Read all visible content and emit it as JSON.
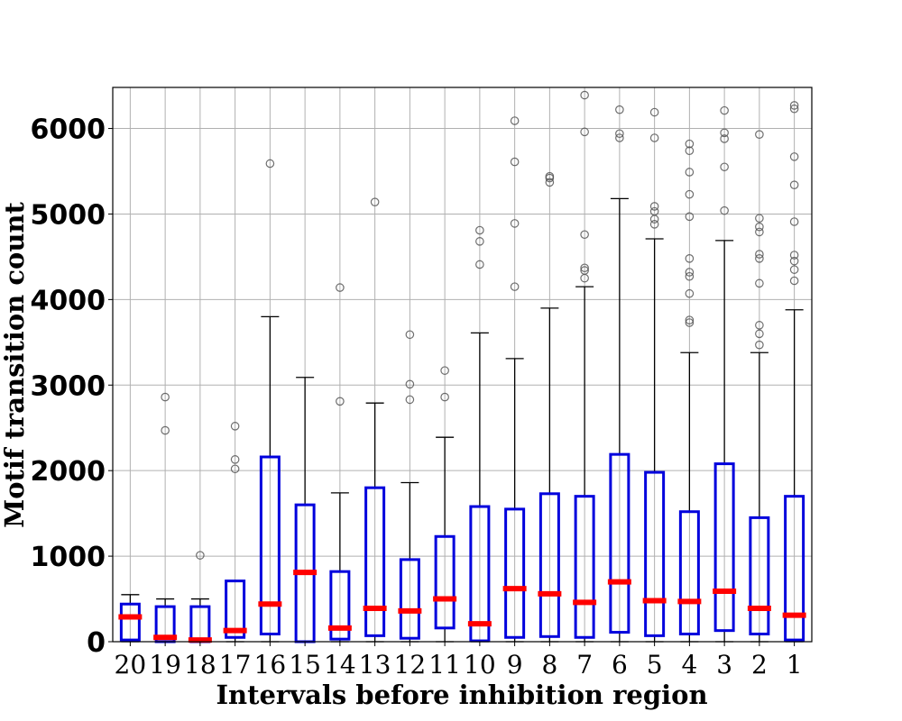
{
  "chart_data": {
    "type": "box",
    "title": "",
    "xlabel": "Intervals before inhibition region",
    "ylabel": "Motif transition count",
    "ylim": [
      0,
      6480
    ],
    "yticks": [
      0,
      1000,
      2000,
      3000,
      4000,
      5000,
      6000
    ],
    "grid": true,
    "colors": {
      "box": "#0000dd",
      "median": "#ff0000",
      "whisker": "#000000",
      "flier": "#555555",
      "grid": "#b0b0b0"
    },
    "categories": [
      "20",
      "19",
      "18",
      "17",
      "16",
      "15",
      "14",
      "13",
      "12",
      "11",
      "10",
      "9",
      "8",
      "7",
      "6",
      "5",
      "4",
      "3",
      "2",
      "1"
    ],
    "boxes": [
      {
        "q1": 20,
        "median": 290,
        "q3": 440,
        "whisker_low": 0,
        "whisker_high": 550,
        "fliers": []
      },
      {
        "q1": 0,
        "median": 50,
        "q3": 410,
        "whisker_low": 0,
        "whisker_high": 500,
        "fliers": [
          2470,
          2860
        ]
      },
      {
        "q1": 0,
        "median": 20,
        "q3": 410,
        "whisker_low": 0,
        "whisker_high": 500,
        "fliers": [
          1010
        ]
      },
      {
        "q1": 50,
        "median": 130,
        "q3": 710,
        "whisker_low": 0,
        "whisker_high": 710,
        "fliers": [
          2020,
          2130,
          2520
        ]
      },
      {
        "q1": 90,
        "median": 440,
        "q3": 2160,
        "whisker_low": 0,
        "whisker_high": 3800,
        "fliers": [
          5590
        ]
      },
      {
        "q1": 0,
        "median": 810,
        "q3": 1600,
        "whisker_low": 0,
        "whisker_high": 3090,
        "fliers": []
      },
      {
        "q1": 30,
        "median": 160,
        "q3": 820,
        "whisker_low": 0,
        "whisker_high": 1740,
        "fliers": [
          2810,
          4140
        ]
      },
      {
        "q1": 70,
        "median": 390,
        "q3": 1800,
        "whisker_low": 0,
        "whisker_high": 2790,
        "fliers": [
          5140
        ]
      },
      {
        "q1": 40,
        "median": 360,
        "q3": 960,
        "whisker_low": 0,
        "whisker_high": 1860,
        "fliers": [
          2830,
          3010,
          3590
        ]
      },
      {
        "q1": 160,
        "median": 500,
        "q3": 1230,
        "whisker_low": 0,
        "whisker_high": 2390,
        "fliers": [
          2860,
          3170
        ]
      },
      {
        "q1": 10,
        "median": 210,
        "q3": 1580,
        "whisker_low": 0,
        "whisker_high": 3610,
        "fliers": [
          4410,
          4680,
          4810
        ]
      },
      {
        "q1": 50,
        "median": 620,
        "q3": 1550,
        "whisker_low": 0,
        "whisker_high": 3310,
        "fliers": [
          4150,
          4890,
          5610,
          6090
        ]
      },
      {
        "q1": 60,
        "median": 560,
        "q3": 1730,
        "whisker_low": 0,
        "whisker_high": 3900,
        "fliers": [
          5370,
          5420,
          5440
        ]
      },
      {
        "q1": 50,
        "median": 460,
        "q3": 1700,
        "whisker_low": 0,
        "whisker_high": 4150,
        "fliers": [
          4250,
          4340,
          4370,
          4760,
          5960,
          6390
        ]
      },
      {
        "q1": 110,
        "median": 700,
        "q3": 2190,
        "whisker_low": 0,
        "whisker_high": 5180,
        "fliers": [
          5890,
          5940,
          6220
        ]
      },
      {
        "q1": 70,
        "median": 480,
        "q3": 1980,
        "whisker_low": 0,
        "whisker_high": 4710,
        "fliers": [
          4880,
          4940,
          5030,
          5090,
          5890,
          6190
        ]
      },
      {
        "q1": 90,
        "median": 470,
        "q3": 1520,
        "whisker_low": 0,
        "whisker_high": 3380,
        "fliers": [
          3730,
          3760,
          4070,
          4270,
          4320,
          4480,
          4970,
          5230,
          5490,
          5740,
          5820
        ]
      },
      {
        "q1": 130,
        "median": 590,
        "q3": 2080,
        "whisker_low": 0,
        "whisker_high": 4690,
        "fliers": [
          5040,
          5550,
          5880,
          5950,
          6210
        ]
      },
      {
        "q1": 90,
        "median": 390,
        "q3": 1450,
        "whisker_low": 0,
        "whisker_high": 3380,
        "fliers": [
          3470,
          3600,
          3700,
          4190,
          4480,
          4530,
          4790,
          4850,
          4950,
          5930
        ]
      },
      {
        "q1": 20,
        "median": 310,
        "q3": 1700,
        "whisker_low": 0,
        "whisker_high": 3880,
        "fliers": [
          4220,
          4350,
          4450,
          4520,
          4910,
          5340,
          5670,
          6230,
          6270
        ]
      }
    ]
  }
}
